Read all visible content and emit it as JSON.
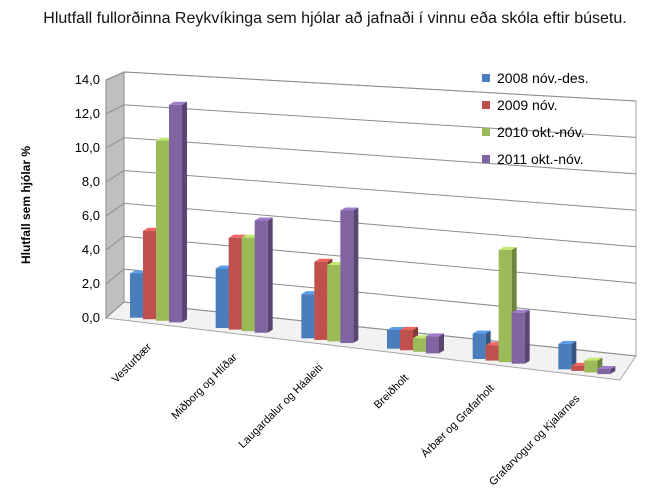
{
  "chart_data": {
    "type": "bar",
    "title": "Hlutfall fullorðinna Reykvíkinga sem hjólar að jafnaði í vinnu eða skóla eftir búsetu.",
    "ylabel": "Hlutfall sem hjólar %",
    "xlabel": "",
    "ylim": [
      0,
      14
    ],
    "yticks": [
      "0,0",
      "2,0",
      "4,0",
      "6,0",
      "8,0",
      "10,0",
      "12,0",
      "14,0"
    ],
    "categories": [
      "Vesturbær",
      "Miðborg og Hlíðar",
      "Laugardalur og Háaleiti",
      "Breiðholt",
      "Árbær og Grafarholt",
      "Grafarvogur og Kjalarnes"
    ],
    "series": [
      {
        "name": "2008 nóv.-des.",
        "color": "#4a7ebb",
        "values": [
          2.6,
          3.5,
          2.6,
          1.1,
          1.5,
          1.5
        ]
      },
      {
        "name": "2009 nóv.",
        "color": "#c0504d",
        "values": [
          5.2,
          5.4,
          4.6,
          1.2,
          0.9,
          0.3
        ]
      },
      {
        "name": "2010 okt.-nóv.",
        "color": "#9bbb59",
        "values": [
          10.6,
          5.5,
          4.5,
          0.8,
          6.6,
          0.7
        ]
      },
      {
        "name": "2011 okt.-nóv.",
        "color": "#8064a2",
        "values": [
          12.8,
          6.6,
          7.8,
          1.0,
          3.0,
          0.3
        ]
      }
    ],
    "legend_position": "top-right",
    "grid": true
  }
}
